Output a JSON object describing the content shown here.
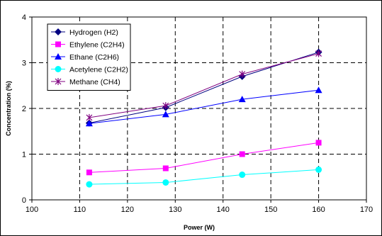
{
  "chart_data": {
    "type": "line",
    "title": "",
    "xlabel": "Power (W)",
    "ylabel": "Concentration (%)",
    "xlim": [
      100,
      170
    ],
    "ylim": [
      0,
      4
    ],
    "x_ticks": [
      100,
      110,
      120,
      130,
      140,
      150,
      160,
      170
    ],
    "y_ticks": [
      0,
      1,
      2,
      3,
      4
    ],
    "grid": "dashed",
    "legend_position": "top-left",
    "series": [
      {
        "name": "Hydrogen (H2)",
        "color": "#000080",
        "marker": "diamond",
        "points": [
          [
            112,
            1.68
          ],
          [
            128,
            2.02
          ],
          [
            144,
            2.7
          ],
          [
            160,
            3.23
          ]
        ]
      },
      {
        "name": "Ethylene (C2H4)",
        "color": "#FF00FF",
        "marker": "square",
        "points": [
          [
            112,
            0.6
          ],
          [
            128,
            0.69
          ],
          [
            144,
            1.0
          ],
          [
            160,
            1.25
          ]
        ]
      },
      {
        "name": "Ethane (C2H6)",
        "color": "#0000FF",
        "marker": "triangle",
        "points": [
          [
            112,
            1.67
          ],
          [
            128,
            1.87
          ],
          [
            144,
            2.2
          ],
          [
            160,
            2.4
          ]
        ]
      },
      {
        "name": "Acetylene (C2H2)",
        "color": "#00FFFF",
        "marker": "circle",
        "points": [
          [
            112,
            0.34
          ],
          [
            128,
            0.38
          ],
          [
            144,
            0.55
          ],
          [
            160,
            0.66
          ]
        ]
      },
      {
        "name": "Methane (CH4)",
        "color": "#800080",
        "marker": "star",
        "points": [
          [
            112,
            1.8
          ],
          [
            128,
            2.06
          ],
          [
            144,
            2.75
          ],
          [
            160,
            3.2
          ]
        ]
      }
    ]
  }
}
